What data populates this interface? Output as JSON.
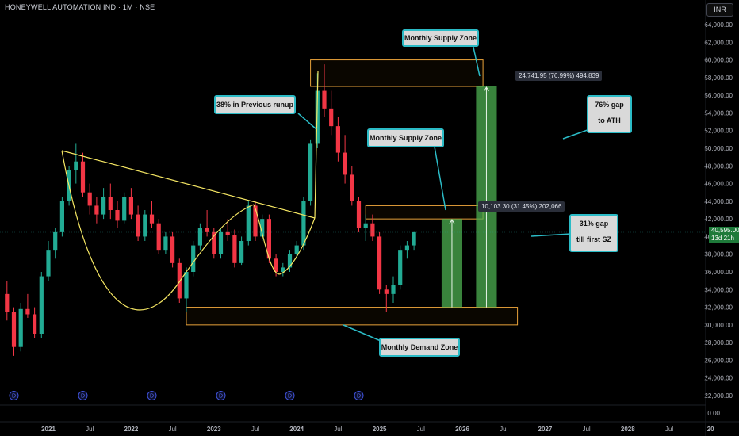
{
  "header": {
    "title": "HONEYWELL AUTOMATION IND · 1M · NSE",
    "currency": "INR"
  },
  "price_tag": {
    "price": "40,595.00",
    "countdown": "13d 21h"
  },
  "callouts": {
    "supply_top": "Monthly Supply Zone",
    "supply_mid": "Monthly Supply Zone",
    "demand": "Monthly Demand Zone",
    "runup": "38% in Previous runup",
    "gap76_line1": "76% gap",
    "gap76_line2": "to ATH",
    "gap31_line1": "31% gap",
    "gap31_line2": "till first SZ"
  },
  "measures": {
    "ath": "24,741.95 (76.99%) 494,839",
    "first_sz": "10,103.30 (31.45%) 202,066"
  },
  "dividend_marker": "D",
  "chart_data": {
    "type": "candlestick",
    "title": "HONEYWELL AUTOMATION IND · 1M · NSE",
    "interval": "1M",
    "exchange": "NSE",
    "currency": "INR",
    "y_axis_position": "right",
    "ylim": [
      21000,
      65000
    ],
    "y_ticks": [
      22000,
      24000,
      26000,
      28000,
      30000,
      32000,
      34000,
      36000,
      38000,
      40000,
      42000,
      44000,
      46000,
      48000,
      50000,
      52000,
      54000,
      56000,
      58000,
      60000,
      62000,
      64000
    ],
    "y_tick_labels": [
      "22,000.00",
      "24,000.00",
      "26,000.00",
      "28,000.00",
      "30,000.00",
      "32,000.00",
      "34,000.00",
      "36,000.00",
      "38,000.00",
      "40,000.00",
      "42,000.00",
      "44,000.00",
      "46,000.00",
      "48,000.00",
      "50,000.00",
      "52,000.00",
      "54,000.00",
      "56,000.00",
      "58,000.00",
      "60,000.00",
      "62,000.00",
      "64,000.00"
    ],
    "y_extra_label": "0.00",
    "x_ticks": [
      "2021",
      "Jul",
      "2022",
      "Jul",
      "2023",
      "Jul",
      "2024",
      "Jul",
      "2025",
      "Jul",
      "2026",
      "Jul",
      "2027",
      "Jul",
      "2028",
      "Jul",
      "20"
    ],
    "x_tick_months": [
      0,
      6,
      12,
      18,
      24,
      30,
      36,
      42,
      48,
      54,
      60,
      66,
      72,
      78,
      84,
      90,
      96
    ],
    "candles": [
      {
        "m": -6,
        "o": 33500,
        "h": 35000,
        "l": 30500,
        "c": 31500
      },
      {
        "m": -5,
        "o": 31500,
        "h": 32000,
        "l": 26500,
        "c": 27500
      },
      {
        "m": -4,
        "o": 27500,
        "h": 32500,
        "l": 27000,
        "c": 31800
      },
      {
        "m": -3,
        "o": 31800,
        "h": 33500,
        "l": 30800,
        "c": 31200
      },
      {
        "m": -2,
        "o": 31200,
        "h": 32000,
        "l": 28500,
        "c": 29000
      },
      {
        "m": -1,
        "o": 29000,
        "h": 36000,
        "l": 28500,
        "c": 35500
      },
      {
        "m": 0,
        "o": 35500,
        "h": 39500,
        "l": 35000,
        "c": 38500
      },
      {
        "m": 1,
        "o": 38500,
        "h": 41000,
        "l": 37500,
        "c": 40500
      },
      {
        "m": 2,
        "o": 40500,
        "h": 44500,
        "l": 40000,
        "c": 44000
      },
      {
        "m": 3,
        "o": 44000,
        "h": 48000,
        "l": 43500,
        "c": 47500
      },
      {
        "m": 4,
        "o": 47500,
        "h": 50500,
        "l": 46000,
        "c": 48500
      },
      {
        "m": 5,
        "o": 48500,
        "h": 49500,
        "l": 44500,
        "c": 45000
      },
      {
        "m": 6,
        "o": 45000,
        "h": 46000,
        "l": 42500,
        "c": 43500
      },
      {
        "m": 7,
        "o": 43500,
        "h": 44500,
        "l": 41500,
        "c": 42500
      },
      {
        "m": 8,
        "o": 42500,
        "h": 45500,
        "l": 42000,
        "c": 44500
      },
      {
        "m": 9,
        "o": 44500,
        "h": 46000,
        "l": 42000,
        "c": 43000
      },
      {
        "m": 10,
        "o": 43000,
        "h": 44000,
        "l": 41000,
        "c": 41800
      },
      {
        "m": 11,
        "o": 41800,
        "h": 45000,
        "l": 41500,
        "c": 44500
      },
      {
        "m": 12,
        "o": 44500,
        "h": 45500,
        "l": 42000,
        "c": 42500
      },
      {
        "m": 13,
        "o": 42500,
        "h": 43500,
        "l": 39500,
        "c": 40000
      },
      {
        "m": 14,
        "o": 40000,
        "h": 43000,
        "l": 39500,
        "c": 42500
      },
      {
        "m": 15,
        "o": 42500,
        "h": 44000,
        "l": 41000,
        "c": 41500
      },
      {
        "m": 16,
        "o": 41500,
        "h": 42000,
        "l": 38000,
        "c": 38500
      },
      {
        "m": 17,
        "o": 38500,
        "h": 40500,
        "l": 38000,
        "c": 40000
      },
      {
        "m": 18,
        "o": 40000,
        "h": 40500,
        "l": 36500,
        "c": 37000
      },
      {
        "m": 19,
        "o": 37000,
        "h": 37500,
        "l": 32500,
        "c": 33000
      },
      {
        "m": 20,
        "o": 33000,
        "h": 36500,
        "l": 31500,
        "c": 36000
      },
      {
        "m": 21,
        "o": 36000,
        "h": 39500,
        "l": 35500,
        "c": 39000
      },
      {
        "m": 22,
        "o": 39000,
        "h": 41500,
        "l": 38500,
        "c": 41000
      },
      {
        "m": 23,
        "o": 41000,
        "h": 43000,
        "l": 40000,
        "c": 40500
      },
      {
        "m": 24,
        "o": 40500,
        "h": 41000,
        "l": 37500,
        "c": 38000
      },
      {
        "m": 25,
        "o": 38000,
        "h": 41000,
        "l": 37500,
        "c": 40500
      },
      {
        "m": 26,
        "o": 40500,
        "h": 42000,
        "l": 39500,
        "c": 40200
      },
      {
        "m": 27,
        "o": 40200,
        "h": 40800,
        "l": 36500,
        "c": 37000
      },
      {
        "m": 28,
        "o": 37000,
        "h": 40000,
        "l": 36800,
        "c": 39500
      },
      {
        "m": 29,
        "o": 39500,
        "h": 44000,
        "l": 39000,
        "c": 43500
      },
      {
        "m": 30,
        "o": 43500,
        "h": 44000,
        "l": 39500,
        "c": 40000
      },
      {
        "m": 31,
        "o": 40000,
        "h": 42500,
        "l": 39500,
        "c": 42000
      },
      {
        "m": 32,
        "o": 42000,
        "h": 42500,
        "l": 37000,
        "c": 37500
      },
      {
        "m": 33,
        "o": 37500,
        "h": 38000,
        "l": 35500,
        "c": 36000
      },
      {
        "m": 34,
        "o": 36000,
        "h": 37000,
        "l": 35500,
        "c": 36500
      },
      {
        "m": 35,
        "o": 36500,
        "h": 38500,
        "l": 36000,
        "c": 38000
      },
      {
        "m": 36,
        "o": 38000,
        "h": 39500,
        "l": 37500,
        "c": 39000
      },
      {
        "m": 37,
        "o": 39000,
        "h": 44500,
        "l": 38500,
        "c": 44000
      },
      {
        "m": 38,
        "o": 44000,
        "h": 51000,
        "l": 43500,
        "c": 50500
      },
      {
        "m": 39,
        "o": 50500,
        "h": 58500,
        "l": 50000,
        "c": 56500
      },
      {
        "m": 40,
        "o": 56500,
        "h": 59500,
        "l": 53500,
        "c": 54500
      },
      {
        "m": 41,
        "o": 54500,
        "h": 56500,
        "l": 51500,
        "c": 52500
      },
      {
        "m": 42,
        "o": 52500,
        "h": 53500,
        "l": 48500,
        "c": 49500
      },
      {
        "m": 43,
        "o": 49500,
        "h": 51500,
        "l": 46000,
        "c": 47000
      },
      {
        "m": 44,
        "o": 47000,
        "h": 48000,
        "l": 43500,
        "c": 44000
      },
      {
        "m": 45,
        "o": 44000,
        "h": 44500,
        "l": 40500,
        "c": 41000
      },
      {
        "m": 46,
        "o": 41000,
        "h": 42500,
        "l": 39500,
        "c": 41500
      },
      {
        "m": 47,
        "o": 41500,
        "h": 42500,
        "l": 39500,
        "c": 40000
      },
      {
        "m": 48,
        "o": 40000,
        "h": 40500,
        "l": 33500,
        "c": 34000
      },
      {
        "m": 49,
        "o": 34000,
        "h": 34500,
        "l": 31500,
        "c": 33500
      },
      {
        "m": 50,
        "o": 33500,
        "h": 35500,
        "l": 32500,
        "c": 34500
      },
      {
        "m": 51,
        "o": 34500,
        "h": 39000,
        "l": 34000,
        "c": 38500
      },
      {
        "m": 52,
        "o": 38500,
        "h": 39500,
        "l": 37500,
        "c": 39000
      },
      {
        "m": 53,
        "o": 39000,
        "h": 40500,
        "l": 38500,
        "c": 40500
      }
    ],
    "zones": [
      {
        "label": "Monthly Supply Zone",
        "from_month": 38,
        "to_month": 63,
        "low": 57000,
        "high": 60000
      },
      {
        "label": "Monthly Supply Zone",
        "from_month": 46,
        "to_month": 63,
        "low": 42000,
        "high": 43500
      },
      {
        "label": "Monthly Demand Zone",
        "from_month": 20,
        "to_month": 68,
        "low": 30000,
        "high": 32000
      }
    ],
    "measurements": [
      {
        "label": "10,103.30 (31.45%) 202,066",
        "from_month": 57,
        "to_month": 60,
        "from_price": 32000,
        "to_price": 42000
      },
      {
        "label": "24,741.95 (76.99%) 494,839",
        "from_month": 62,
        "to_month": 65,
        "from_price": 32000,
        "to_price": 57000
      }
    ],
    "last_price": 40595,
    "dividend_months": [
      -5,
      5,
      15,
      25,
      35,
      45
    ]
  }
}
